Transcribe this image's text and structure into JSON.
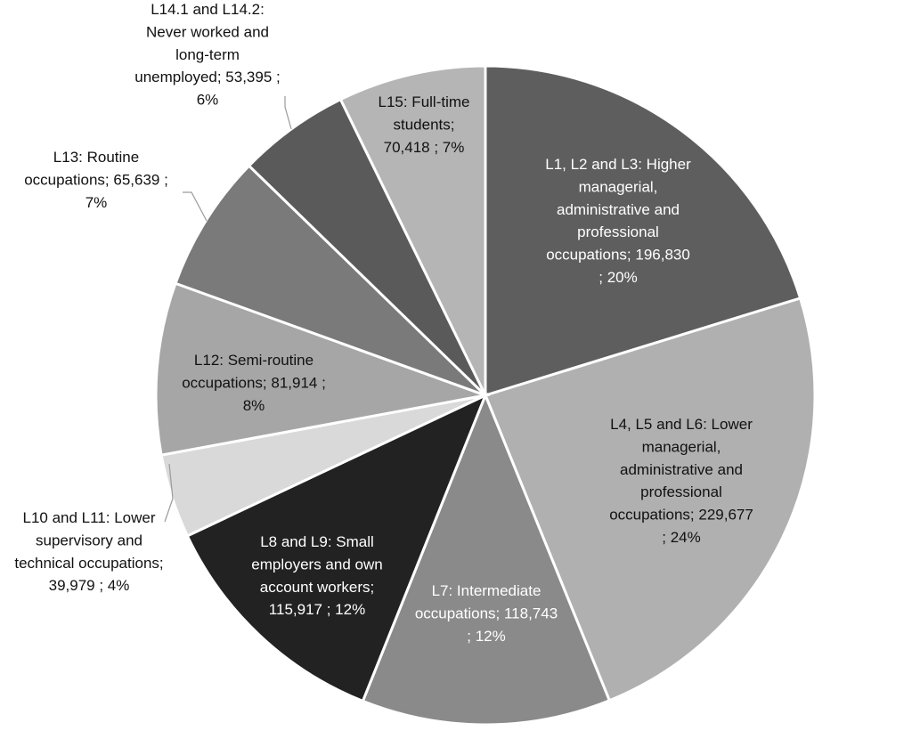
{
  "chart_data": {
    "type": "pie",
    "title": "",
    "slices": [
      {
        "lines": [
          "L1, L2 and L3: Higher",
          "managerial,",
          "administrative and",
          "professional",
          "occupations;  196,830",
          "; 20%"
        ],
        "value": 196830,
        "percent": 20,
        "color": "#5e5e5e",
        "label_color": "#ffffff"
      },
      {
        "lines": [
          "L4, L5 and L6: Lower",
          "managerial,",
          "administrative and",
          "professional",
          "occupations;  229,677",
          "; 24%"
        ],
        "value": 229677,
        "percent": 24,
        "color": "#b0b0b0",
        "label_color": "#111111"
      },
      {
        "lines": [
          "L7: Intermediate",
          "occupations;  118,743",
          "; 12%"
        ],
        "value": 118743,
        "percent": 12,
        "color": "#8a8a8a",
        "label_color": "#ffffff"
      },
      {
        "lines": [
          "L8 and L9: Small",
          "employers and own",
          "account workers;",
          "115,917 ; 12%"
        ],
        "value": 115917,
        "percent": 12,
        "color": "#222222",
        "label_color": "#ffffff"
      },
      {
        "lines": [
          "L10 and L11: Lower",
          "supervisory and",
          "technical occupations;",
          "39,979 ; 4%"
        ],
        "value": 39979,
        "percent": 4,
        "color": "#d9d9d9",
        "label_color": "#111111"
      },
      {
        "lines": [
          "L12: Semi-routine",
          "occupations;  81,914 ;",
          "8%"
        ],
        "value": 81914,
        "percent": 8,
        "color": "#a6a6a6",
        "label_color": "#111111"
      },
      {
        "lines": [
          "L13: Routine",
          "occupations;  65,639 ;",
          "7%"
        ],
        "value": 65639,
        "percent": 7,
        "color": "#7a7a7a",
        "label_color": "#111111"
      },
      {
        "lines": [
          "L14.1 and L14.2:",
          "Never worked and",
          "long-term",
          "unemployed;  53,395 ;",
          "6%"
        ],
        "value": 53395,
        "percent": 6,
        "color": "#5a5a5a",
        "label_color": "#111111"
      },
      {
        "lines": [
          "L15: Full-time",
          "students;",
          "70,418 ; 7%"
        ],
        "value": 70418,
        "percent": 7,
        "color": "#b5b5b5",
        "label_color": "#111111"
      }
    ],
    "start_angle": "12 o'clock",
    "direction": "clockwise",
    "legend": "none"
  }
}
